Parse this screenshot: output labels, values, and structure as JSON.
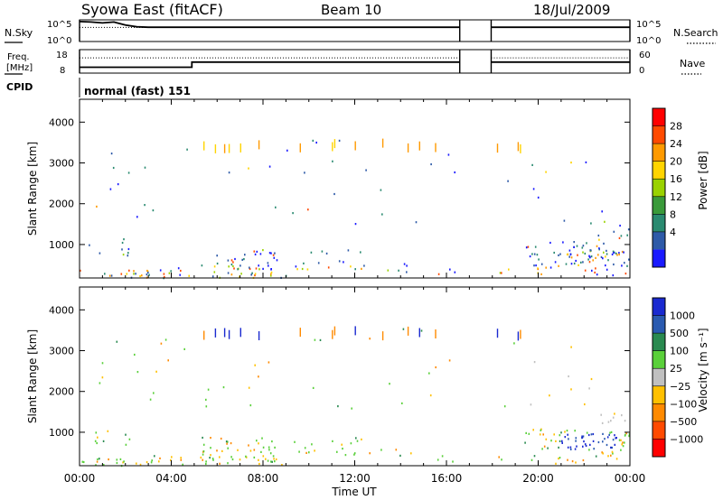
{
  "header": {
    "title": "Syowa East (fitACF)",
    "beam": "Beam 10",
    "date": "18/Jul/2009"
  },
  "panels": {
    "nsky": {
      "label": "N.Sky",
      "right_label": "N.Search",
      "left_ticks": [
        "10^5",
        "10^0"
      ],
      "right_ticks": [
        "10^5",
        "10^0"
      ]
    },
    "freq": {
      "label_line1": "Freq.",
      "label_line2": "[MHz]",
      "right_label": "Nave",
      "left_ticks": [
        "18",
        "8"
      ],
      "right_ticks": [
        "60",
        "0"
      ]
    },
    "cpid": {
      "label": "CPID",
      "value": "normal (fast) 151"
    }
  },
  "colorbars": {
    "power": {
      "label": "Power [dB]",
      "ticks": [
        "28",
        "24",
        "20",
        "16",
        "12",
        "8",
        "4"
      ],
      "colors": [
        "#ff0000",
        "#ff4a00",
        "#ff9a00",
        "#ffd400",
        "#9ad200",
        "#3a9a3a",
        "#2a8a70",
        "#2e5aa8",
        "#1a1aff"
      ]
    },
    "velocity": {
      "label": "Velocity [m s⁻¹]",
      "ticks": [
        "1000",
        "500",
        "100",
        "25",
        "−25",
        "−100",
        "−500",
        "−1000"
      ],
      "colors": [
        "#1a2ad0",
        "#2a5ab0",
        "#2a8a50",
        "#5ad03a",
        "#c0c0c0",
        "#ffc000",
        "#ff8a00",
        "#ff4a00",
        "#ff0000"
      ]
    }
  },
  "chart_data": [
    {
      "type": "line",
      "name": "nsky-nsearch",
      "segments": [
        {
          "x": [
            0.0,
            0.5,
            1.0,
            1.5,
            2.0,
            2.5,
            3.0,
            4.0,
            8.0,
            12.0,
            16.0,
            16.58
          ],
          "y": [
            4.6,
            4.5,
            4.3,
            4.5,
            3.8,
            3.4,
            3.3,
            3.3,
            3.3,
            3.3,
            3.3,
            3.3
          ]
        },
        {
          "x": [
            17.95,
            20.0,
            22.0,
            24.0
          ],
          "y": [
            3.3,
            3.3,
            3.3,
            3.3
          ]
        }
      ],
      "x_range_hours": [
        0,
        24
      ],
      "ylim": [
        0,
        5
      ]
    },
    {
      "type": "line",
      "name": "frequency",
      "segments": [
        {
          "x": [
            0.0,
            4.9,
            4.9,
            16.58
          ],
          "y": [
            10.5,
            10.5,
            12.7,
            12.7
          ]
        },
        {
          "x": [
            17.95,
            24.0
          ],
          "y": [
            12.7,
            12.7
          ]
        }
      ],
      "ylim": [
        8,
        18
      ]
    },
    {
      "type": "heatmap",
      "name": "power",
      "x_ticks": [
        "00:00",
        "04:00",
        "08:00",
        "12:00",
        "16:00",
        "20:00",
        "00:00"
      ],
      "x_tick_hours": [
        0,
        4,
        8,
        12,
        16,
        20,
        24
      ],
      "y_ticks": [
        "1000",
        "2000",
        "3000",
        "4000"
      ],
      "y_tick_values": [
        1000,
        2000,
        3000,
        4000
      ],
      "ylabel": "Slant Range [km]",
      "ylim": [
        180,
        4560
      ],
      "xlim": [
        0,
        24
      ],
      "data_gap_hours": [
        16.58,
        17.95
      ]
    },
    {
      "type": "heatmap",
      "name": "velocity",
      "x_ticks": [
        "00:00",
        "04:00",
        "08:00",
        "12:00",
        "16:00",
        "20:00",
        "00:00"
      ],
      "x_tick_hours": [
        0,
        4,
        8,
        12,
        16,
        20,
        24
      ],
      "y_ticks": [
        "1000",
        "2000",
        "3000",
        "4000"
      ],
      "y_tick_values": [
        1000,
        2000,
        3000,
        4000
      ],
      "ylabel": "Slant Range [km]",
      "xlabel": "Time UT",
      "ylim": [
        180,
        4560
      ],
      "xlim": [
        0,
        24
      ],
      "data_gap_hours": [
        16.58,
        17.95
      ]
    }
  ]
}
